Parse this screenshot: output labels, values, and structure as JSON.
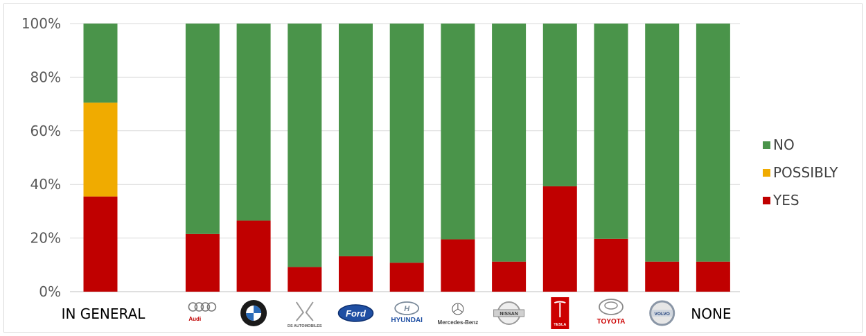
{
  "chart_data": {
    "type": "bar",
    "stacked": true,
    "percent_stacked": true,
    "categories": [
      "IN GENERAL",
      "",
      "Audi",
      "BMW",
      "DS Automobiles",
      "Ford",
      "Hyundai",
      "Mercedes-Benz",
      "Nissan",
      "Tesla",
      "Toyota",
      "Volvo",
      "NONE"
    ],
    "series": [
      {
        "name": "YES",
        "values": [
          35.5,
          null,
          21.5,
          26.5,
          9.2,
          13.2,
          10.8,
          19.5,
          11.2,
          39.3,
          19.7,
          11.2,
          11.2
        ]
      },
      {
        "name": "POSSIBLY",
        "values": [
          35,
          null,
          0,
          0,
          0,
          0,
          0,
          0,
          0,
          0,
          0,
          0,
          0
        ]
      },
      {
        "name": "NO",
        "values": [
          29.5,
          null,
          78.5,
          73.5,
          90.8,
          86.8,
          89.2,
          80.5,
          88.8,
          60.7,
          80.3,
          88.8,
          88.8
        ]
      }
    ],
    "colors": {
      "YES": "#c00000",
      "POSSIBLY": "#f0ab00",
      "NO": "#4a944a"
    },
    "y_ticks": [
      "0%",
      "20%",
      "40%",
      "60%",
      "80%",
      "100%"
    ],
    "ylim": [
      0,
      100
    ],
    "grid": true,
    "legend_placement": "right",
    "legend_order": [
      "NO",
      "POSSIBLY",
      "YES"
    ],
    "text_categories": [
      "IN GENERAL",
      "NONE"
    ],
    "logo_texts": {
      "Audi": "Audi",
      "DS Automobiles": "DS AUTOMOBILES",
      "Ford": "Ford",
      "Hyundai": "HYUNDAI",
      "Mercedes-Benz": "Mercedes-Benz",
      "Nissan": "NISSAN",
      "Tesla": "TESLA",
      "Toyota": "TOYOTA",
      "Volvo": "VOLVO"
    }
  }
}
